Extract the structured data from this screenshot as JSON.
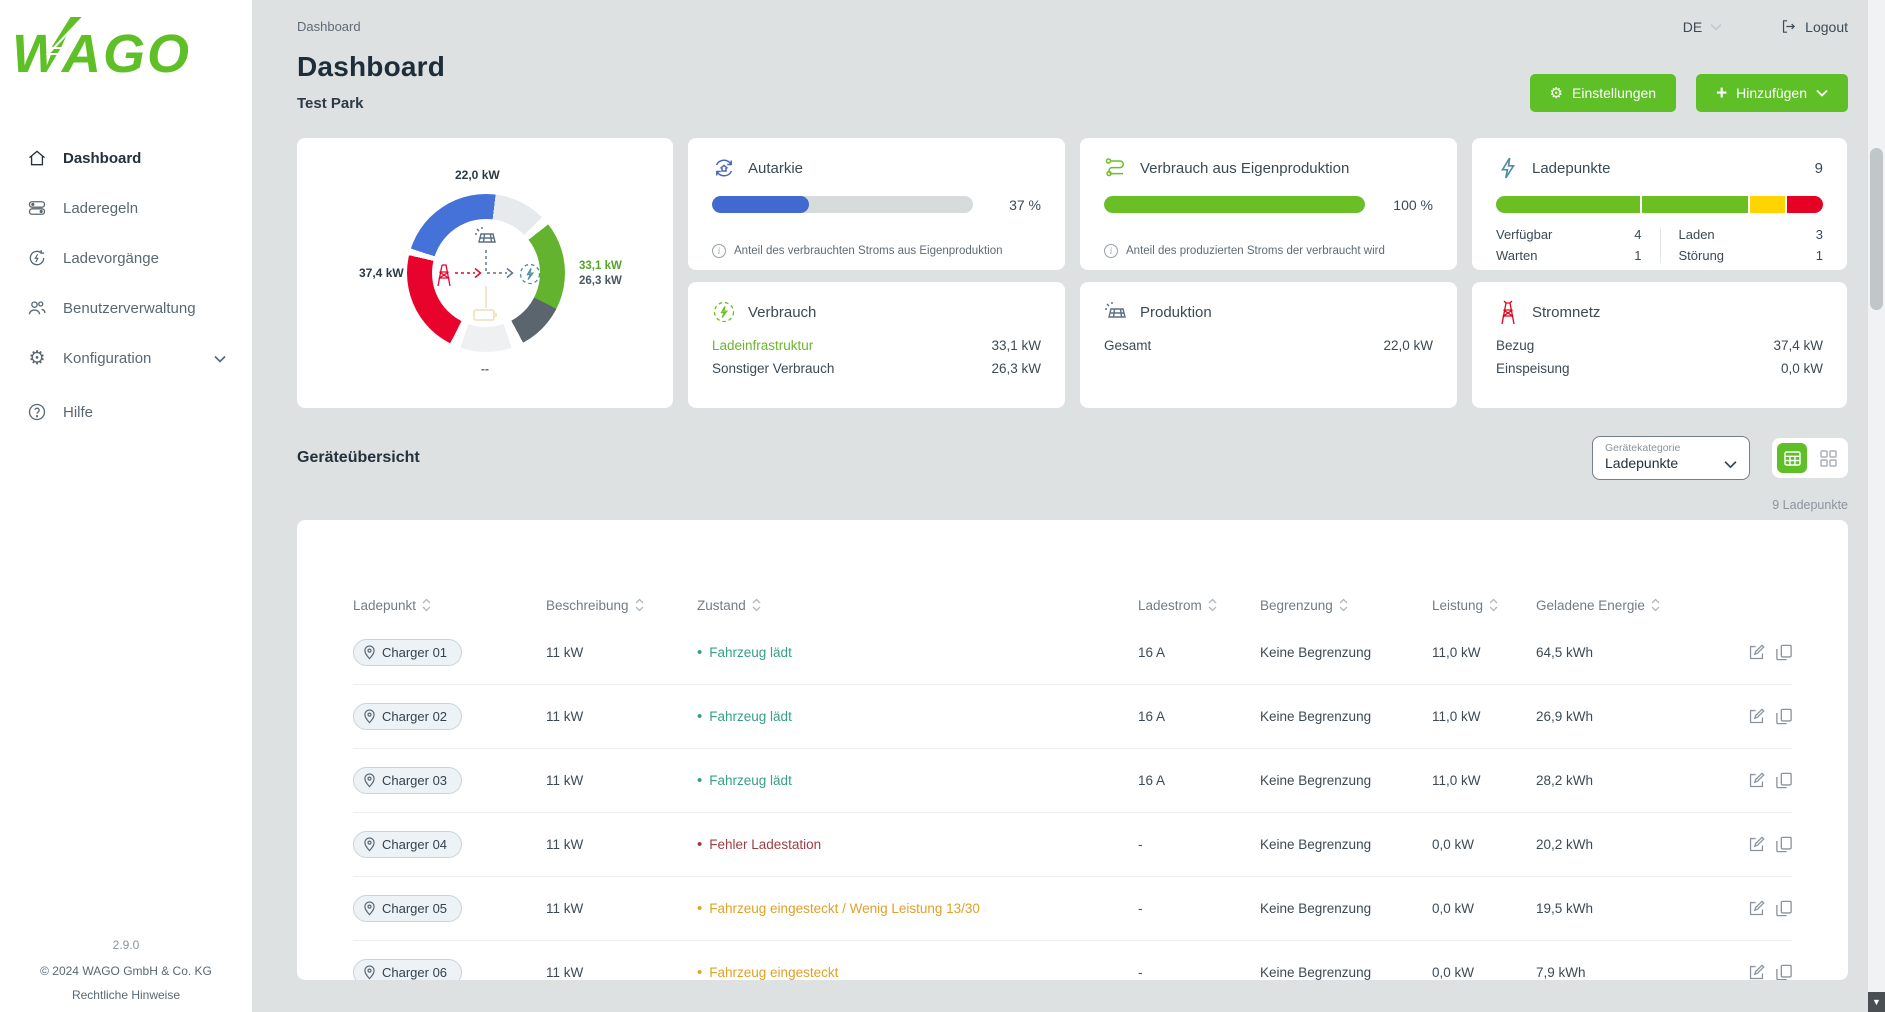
{
  "colors": {
    "brand_green": "#5fbf26",
    "bar_blue": "#4169d0",
    "bar_green": "#6abf27",
    "track_gray": "#d8dbdc",
    "status_ok": "#35a088",
    "status_error": "#9e3d42",
    "status_warning": "#dfa126"
  },
  "sidebar": {
    "logo_alt": "WAGO",
    "items": [
      {
        "label": "Dashboard",
        "icon": "home-icon",
        "active": true
      },
      {
        "label": "Laderegeln",
        "icon": "rules-icon",
        "active": false
      },
      {
        "label": "Ladevorgänge",
        "icon": "charging-sessions-icon",
        "active": false
      },
      {
        "label": "Benutzerverwaltung",
        "icon": "users-icon",
        "active": false
      },
      {
        "label": "Konfiguration",
        "icon": "gear-icon",
        "active": false,
        "expandable": true
      },
      {
        "label": "Hilfe",
        "icon": "help-icon",
        "active": false
      }
    ],
    "version": "2.9.0",
    "copyright": "© 2024 WAGO GmbH & Co. KG",
    "legal": "Rechtliche Hinweise"
  },
  "header": {
    "breadcrumb": "Dashboard",
    "language": "DE",
    "logout": "Logout",
    "title": "Dashboard",
    "subtitle": "Test Park",
    "settings_label": "Einstellungen",
    "add_label": "Hinzufügen"
  },
  "energy_flow": {
    "production_label": "22,0 kW",
    "grid_label": "37,4 kW",
    "charging_label": "33,1 kW",
    "other_label": "26,3 kW",
    "battery_label": "--",
    "segments": [
      {
        "from": 0,
        "to": 7,
        "color": "#4472d8"
      },
      {
        "from": 7,
        "to": 45,
        "color": "#e7eaec"
      },
      {
        "from": 52,
        "to": 117,
        "color": "#63b32e"
      },
      {
        "from": 117,
        "to": 152,
        "color": "#5b656d"
      },
      {
        "from": 161,
        "to": 199,
        "color": "#eef0f2"
      },
      {
        "from": 207,
        "to": 283,
        "color": "#e8032c"
      },
      {
        "from": 288,
        "to": 360,
        "color": "#4472d8"
      }
    ]
  },
  "cards": {
    "autarkie": {
      "title": "Autarkie",
      "percent": 37,
      "value": "37 %",
      "info": "Anteil des verbrauchten Stroms aus Eigenproduktion"
    },
    "eigenproduktion": {
      "title": "Verbrauch aus Eigenproduktion",
      "percent": 100,
      "value": "100 %",
      "info": "Anteil des produzierten Stroms der verbraucht wird"
    },
    "ladepunkte": {
      "title": "Ladepunkte",
      "total": "9",
      "segments": [
        {
          "percent": 44.5,
          "color": "#6cbf22"
        },
        {
          "percent": 33.3,
          "color": "#6cbf22"
        },
        {
          "percent": 11.1,
          "color": "#ffd400"
        },
        {
          "percent": 11.1,
          "color": "#e60023"
        }
      ],
      "stats": [
        {
          "label": "Verfügbar",
          "value": "4"
        },
        {
          "label": "Laden",
          "value": "3"
        },
        {
          "label": "Warten",
          "value": "1"
        },
        {
          "label": "Störung",
          "value": "1"
        }
      ]
    },
    "verbrauch": {
      "title": "Verbrauch",
      "rows": [
        {
          "label": "Ladeinfrastruktur",
          "value": "33,1 kW",
          "highlight": true
        },
        {
          "label": "Sonstiger Verbrauch",
          "value": "26,3 kW",
          "highlight": false
        }
      ]
    },
    "produktion": {
      "title": "Produktion",
      "rows": [
        {
          "label": "Gesamt",
          "value": "22,0 kW"
        }
      ]
    },
    "stromnetz": {
      "title": "Stromnetz",
      "rows": [
        {
          "label": "Bezug",
          "value": "37,4 kW"
        },
        {
          "label": "Einspeisung",
          "value": "0,0 kW"
        }
      ]
    }
  },
  "device_overview": {
    "title": "Geräteübersicht",
    "filter_label": "Gerätekategorie",
    "filter_value": "Ladepunkte",
    "count": "9 Ladepunkte",
    "table": {
      "columns": [
        "Ladepunkt",
        "Beschreibung",
        "Zustand",
        "Ladestrom",
        "Begrenzung",
        "Leistung",
        "Geladene Energie"
      ],
      "rows": [
        {
          "name": "Charger 01",
          "desc": "11 kW",
          "status": "Fahrzeug lädt",
          "status_color": "#35a088",
          "current": "16 A",
          "limit": "Keine Begrenzung",
          "power": "11,0 kW",
          "energy": "64,5 kWh"
        },
        {
          "name": "Charger 02",
          "desc": "11 kW",
          "status": "Fahrzeug lädt",
          "status_color": "#35a088",
          "current": "16 A",
          "limit": "Keine Begrenzung",
          "power": "11,0 kW",
          "energy": "26,9 kWh"
        },
        {
          "name": "Charger 03",
          "desc": "11 kW",
          "status": "Fahrzeug lädt",
          "status_color": "#35a088",
          "current": "16 A",
          "limit": "Keine Begrenzung",
          "power": "11,0 kW",
          "energy": "28,2 kWh"
        },
        {
          "name": "Charger 04",
          "desc": "11 kW",
          "status": "Fehler Ladestation",
          "status_color": "#9e3d42",
          "current": "-",
          "limit": "Keine Begrenzung",
          "power": "0,0 kW",
          "energy": "20,2 kWh"
        },
        {
          "name": "Charger 05",
          "desc": "11 kW",
          "status": "Fahrzeug eingesteckt / Wenig Leistung 13/30",
          "status_color": "#dfa126",
          "current": "-",
          "limit": "Keine Begrenzung",
          "power": "0,0 kW",
          "energy": "19,5 kWh"
        },
        {
          "name": "Charger 06",
          "desc": "11 kW",
          "status": "Fahrzeug eingesteckt",
          "status_color": "#dfa126",
          "current": "-",
          "limit": "Keine Begrenzung",
          "power": "0,0 kW",
          "energy": "7,9 kWh"
        }
      ]
    }
  },
  "chart_data": {
    "type": "pie",
    "title": "Energiefluss",
    "series": [
      {
        "name": "Produktion",
        "value_kw": 22.0
      },
      {
        "name": "Stromnetz Bezug",
        "value_kw": 37.4
      },
      {
        "name": "Ladeinfrastruktur",
        "value_kw": 33.1
      },
      {
        "name": "Sonstiger Verbrauch",
        "value_kw": 26.3
      },
      {
        "name": "Batterie",
        "value_kw": null
      }
    ]
  }
}
